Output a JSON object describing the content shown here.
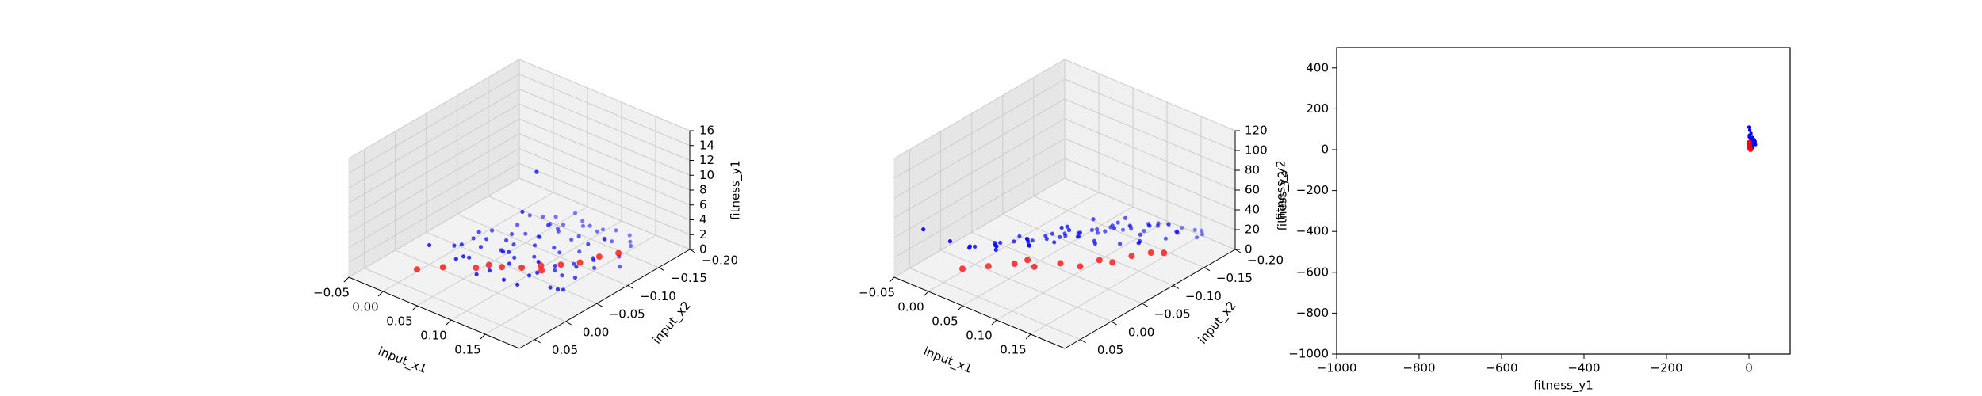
{
  "colors": {
    "population": "#0000ff",
    "pareto_front": "#ff0000"
  },
  "chart_data": [
    {
      "type": "scatter",
      "projection": "3d",
      "xlabel": "input_x1",
      "ylabel": "input_x2",
      "zlabel": "fitness_y1",
      "xlim": [
        -0.05,
        0.2
      ],
      "ylim": [
        -0.2,
        0.075
      ],
      "zlim": [
        0,
        16
      ],
      "xticks": [
        "−0.05",
        "0.00",
        "0.05",
        "0.10",
        "0.15"
      ],
      "yticks": [
        "−0.20",
        "−0.15",
        "−0.10",
        "−0.05",
        "0.00",
        "0.05"
      ],
      "zticks": [
        "0",
        "2",
        "4",
        "6",
        "8",
        "10",
        "12",
        "14",
        "16"
      ],
      "grid": true,
      "series": [
        {
          "color": "#0000ff",
          "points": [
            [
              0.13,
              -0.03,
              16.0
            ],
            [
              0.1,
              -0.04,
              9.0
            ],
            [
              0.12,
              -0.06,
              7.0
            ],
            [
              0.16,
              0.0,
              6.5
            ],
            [
              0.16,
              -0.08,
              5.0
            ],
            [
              0.09,
              -0.02,
              4.2
            ],
            [
              0.17,
              -0.05,
              3.8
            ],
            [
              0.05,
              0.0,
              3.0
            ],
            [
              0.0,
              0.0,
              2.6
            ],
            [
              0.14,
              -0.02,
              3.3
            ],
            [
              0.08,
              -0.09,
              2.4
            ],
            [
              0.02,
              -0.03,
              2.0
            ],
            [
              0.11,
              -0.12,
              2.2
            ],
            [
              0.06,
              -0.05,
              1.8
            ],
            [
              0.13,
              -0.14,
              1.6
            ],
            [
              0.03,
              -0.01,
              1.4
            ],
            [
              0.15,
              -0.1,
              1.5
            ],
            [
              0.07,
              -0.13,
              1.2
            ],
            [
              0.01,
              -0.06,
              1.0
            ],
            [
              0.1,
              -0.01,
              1.3
            ],
            [
              0.04,
              -0.08,
              0.9
            ],
            [
              0.12,
              -0.15,
              0.8
            ],
            [
              0.09,
              -0.07,
              1.1
            ],
            [
              0.06,
              -0.11,
              0.7
            ],
            [
              0.14,
              -0.06,
              1.0
            ],
            [
              0.0,
              -0.04,
              0.6
            ],
            [
              0.08,
              -0.16,
              0.5
            ],
            [
              0.11,
              -0.04,
              0.8
            ],
            [
              0.05,
              -0.14,
              0.6
            ],
            [
              0.16,
              -0.13,
              0.9
            ],
            [
              0.03,
              -0.1,
              0.4
            ],
            [
              0.13,
              -0.09,
              0.7
            ],
            [
              0.07,
              -0.02,
              0.9
            ],
            [
              0.1,
              -0.17,
              0.3
            ],
            [
              0.02,
              -0.12,
              0.3
            ],
            [
              0.15,
              -0.03,
              1.2
            ],
            [
              0.04,
              -0.16,
              0.2
            ],
            [
              0.09,
              -0.13,
              0.5
            ],
            [
              0.12,
              -0.01,
              1.4
            ],
            [
              0.06,
              -0.07,
              1.6
            ],
            [
              0.17,
              -0.12,
              0.4
            ],
            [
              0.01,
              -0.09,
              0.6
            ],
            [
              0.11,
              -0.08,
              2.6
            ],
            [
              0.14,
              -0.17,
              0.2
            ],
            [
              0.08,
              -0.04,
              2.8
            ],
            [
              0.03,
              -0.05,
              1.1
            ],
            [
              0.13,
              -0.06,
              1.9
            ],
            [
              0.05,
              -0.18,
              0.1
            ],
            [
              0.1,
              -0.1,
              0.6
            ],
            [
              0.07,
              -0.17,
              0.3
            ],
            [
              0.16,
              -0.09,
              1.3
            ],
            [
              0.02,
              -0.07,
              0.8
            ],
            [
              0.12,
              -0.11,
              1.0
            ],
            [
              0.09,
              -0.03,
              2.1
            ],
            [
              0.04,
              -0.02,
              1.5
            ],
            [
              0.15,
              -0.16,
              0.5
            ],
            [
              0.06,
              -0.15,
              0.4
            ],
            [
              0.11,
              -0.18,
              0.1
            ],
            [
              0.14,
              -0.11,
              0.9
            ],
            [
              0.0,
              -0.08,
              0.5
            ],
            [
              0.08,
              -0.12,
              1.7
            ],
            [
              0.13,
              -0.18,
              0.2
            ],
            [
              0.05,
              -0.1,
              1.2
            ],
            [
              0.1,
              -0.06,
              3.5
            ],
            [
              0.17,
              -0.02,
              2.2
            ],
            [
              0.07,
              -0.06,
              0.7
            ],
            [
              0.12,
              -0.07,
              0.4
            ],
            [
              0.03,
              -0.15,
              0.3
            ],
            [
              0.15,
              -0.07,
              0.6
            ],
            [
              0.09,
              -0.16,
              0.9
            ],
            [
              0.06,
              -0.01,
              0.5
            ],
            [
              0.11,
              -0.15,
              1.4
            ],
            [
              0.16,
              -0.04,
              0.8
            ],
            [
              0.02,
              -0.14,
              0.6
            ],
            [
              0.14,
              -0.14,
              1.7
            ]
          ]
        },
        {
          "color": "#ff0000",
          "points": [
            [
              0.0,
              0.02,
              0.3
            ],
            [
              0.02,
              0.0,
              0.4
            ],
            [
              0.05,
              -0.02,
              0.5
            ],
            [
              0.07,
              -0.04,
              0.4
            ],
            [
              0.09,
              -0.05,
              0.6
            ],
            [
              0.11,
              -0.06,
              0.5
            ],
            [
              0.12,
              -0.08,
              0.7
            ],
            [
              0.13,
              -0.1,
              0.4
            ],
            [
              0.14,
              -0.12,
              0.6
            ],
            [
              0.15,
              -0.14,
              0.5
            ],
            [
              0.06,
              -0.03,
              0.8
            ],
            [
              0.1,
              -0.07,
              0.3
            ]
          ]
        }
      ]
    },
    {
      "type": "scatter",
      "projection": "3d",
      "xlabel": "input_x1",
      "ylabel": "input_x2",
      "zlabel": "fitness_y2",
      "xlim": [
        -0.05,
        0.2
      ],
      "ylim": [
        -0.2,
        0.075
      ],
      "zlim": [
        0,
        120
      ],
      "xticks": [
        "−0.05",
        "0.00",
        "0.05",
        "0.10",
        "0.15"
      ],
      "yticks": [
        "−0.20",
        "−0.15",
        "−0.10",
        "−0.05",
        "0.00",
        "0.05"
      ],
      "zticks": [
        "0",
        "20",
        "40",
        "60",
        "80",
        "100",
        "120"
      ],
      "grid": true,
      "series": [
        {
          "color": "#0000ff",
          "points": [
            [
              -0.03,
              0.05,
              45
            ],
            [
              0.0,
              0.04,
              38
            ],
            [
              0.12,
              -0.02,
              62
            ],
            [
              0.15,
              -0.06,
              58
            ],
            [
              0.1,
              -0.03,
              55
            ],
            [
              0.17,
              -0.08,
              50
            ],
            [
              0.13,
              -0.1,
              48
            ],
            [
              0.08,
              0.0,
              42
            ],
            [
              0.05,
              0.02,
              40
            ],
            [
              0.16,
              -0.12,
              44
            ],
            [
              0.02,
              0.03,
              35
            ],
            [
              0.11,
              -0.07,
              52
            ],
            [
              0.14,
              -0.04,
              47
            ],
            [
              0.07,
              -0.01,
              36
            ],
            [
              0.09,
              -0.05,
              46
            ],
            [
              0.18,
              -0.11,
              38
            ],
            [
              0.04,
              0.01,
              30
            ],
            [
              0.12,
              -0.09,
              41
            ],
            [
              0.06,
              -0.02,
              33
            ],
            [
              0.15,
              -0.13,
              35
            ],
            [
              0.1,
              -0.06,
              39
            ],
            [
              0.03,
              0.0,
              28
            ],
            [
              0.13,
              -0.05,
              43
            ],
            [
              0.08,
              -0.04,
              31
            ],
            [
              0.16,
              -0.09,
              37
            ],
            [
              0.01,
              0.02,
              27
            ],
            [
              0.11,
              -0.11,
              34
            ],
            [
              0.05,
              -0.03,
              29
            ],
            [
              0.14,
              -0.08,
              32
            ],
            [
              0.07,
              -0.06,
              26
            ],
            [
              0.17,
              -0.14,
              30
            ],
            [
              0.09,
              -0.09,
              28
            ],
            [
              0.02,
              -0.01,
              24
            ],
            [
              0.12,
              -0.12,
              27
            ],
            [
              0.06,
              -0.05,
              25
            ],
            [
              0.15,
              -0.1,
              29
            ],
            [
              0.04,
              -0.04,
              23
            ],
            [
              0.1,
              -0.1,
              26
            ],
            [
              0.13,
              -0.13,
              24
            ],
            [
              0.08,
              -0.08,
              22
            ],
            [
              0.16,
              -0.15,
              25
            ],
            [
              0.03,
              -0.03,
              21
            ],
            [
              0.11,
              -0.13,
              23
            ],
            [
              0.05,
              -0.07,
              20
            ],
            [
              0.14,
              -0.11,
              22
            ],
            [
              0.07,
              -0.09,
              19
            ],
            [
              0.18,
              -0.16,
              21
            ],
            [
              0.09,
              -0.12,
              20
            ],
            [
              0.0,
              0.0,
              18
            ],
            [
              0.12,
              -0.15,
              19
            ],
            [
              0.06,
              -0.08,
              17
            ],
            [
              0.15,
              -0.16,
              18
            ],
            [
              0.02,
              -0.05,
              16
            ],
            [
              0.1,
              -0.14,
              17
            ],
            [
              0.13,
              -0.17,
              16
            ],
            [
              0.04,
              -0.07,
              15
            ],
            [
              0.08,
              -0.11,
              15
            ],
            [
              0.17,
              -0.18,
              14
            ],
            [
              0.01,
              -0.03,
              14
            ],
            [
              0.11,
              -0.16,
              13
            ],
            [
              0.05,
              -0.09,
              13
            ],
            [
              0.14,
              -0.18,
              12
            ],
            [
              0.07,
              -0.12,
              12
            ],
            [
              0.16,
              -0.19,
              11
            ],
            [
              0.03,
              -0.06,
              11
            ],
            [
              0.09,
              -0.14,
              10
            ],
            [
              0.12,
              -0.18,
              10
            ],
            [
              0.06,
              -0.1,
              9
            ],
            [
              0.15,
              -0.19,
              9
            ],
            [
              0.1,
              -0.17,
              8
            ]
          ]
        },
        {
          "color": "#ff0000",
          "points": [
            [
              0.0,
              0.02,
              3
            ],
            [
              0.02,
              0.0,
              4
            ],
            [
              0.04,
              -0.02,
              5
            ],
            [
              0.06,
              -0.03,
              4
            ],
            [
              0.08,
              -0.05,
              6
            ],
            [
              0.1,
              -0.06,
              5
            ],
            [
              0.11,
              -0.08,
              7
            ],
            [
              0.12,
              -0.09,
              4
            ],
            [
              0.13,
              -0.11,
              6
            ],
            [
              0.14,
              -0.13,
              5
            ],
            [
              0.15,
              -0.14,
              4
            ],
            [
              0.05,
              -0.03,
              8
            ]
          ]
        }
      ]
    },
    {
      "type": "scatter",
      "projection": "2d",
      "xlabel": "fitness_y1",
      "ylabel": "fitness_y2",
      "xlim": [
        -1000,
        100
      ],
      "ylim": [
        -1000,
        500
      ],
      "xticks": [
        "−1000",
        "−800",
        "−600",
        "−400",
        "−200",
        "0"
      ],
      "yticks": [
        "−1000",
        "−800",
        "−600",
        "−400",
        "−200",
        "0",
        "200",
        "400"
      ],
      "grid": false,
      "series": [
        {
          "color": "#0000ff",
          "points": [
            [
              0,
              110
            ],
            [
              2,
              95
            ],
            [
              5,
              80
            ],
            [
              1,
              70
            ],
            [
              8,
              60
            ],
            [
              3,
              55
            ],
            [
              12,
              50
            ],
            [
              6,
              45
            ],
            [
              15,
              40
            ],
            [
              10,
              35
            ],
            [
              4,
              30
            ],
            [
              16,
              25
            ],
            [
              7,
              20
            ],
            [
              2,
              15
            ],
            [
              9,
              10
            ],
            [
              13,
              48
            ],
            [
              1,
              62
            ],
            [
              5,
              38
            ],
            [
              11,
              28
            ],
            [
              3,
              18
            ]
          ]
        },
        {
          "color": "#ff0000",
          "points": [
            [
              0,
              30
            ],
            [
              0.5,
              25
            ],
            [
              1,
              20
            ],
            [
              1.5,
              15
            ],
            [
              2,
              10
            ],
            [
              2.5,
              6
            ],
            [
              3,
              3
            ],
            [
              4,
              1
            ],
            [
              0.3,
              35
            ],
            [
              1.2,
              12
            ]
          ]
        }
      ]
    }
  ]
}
